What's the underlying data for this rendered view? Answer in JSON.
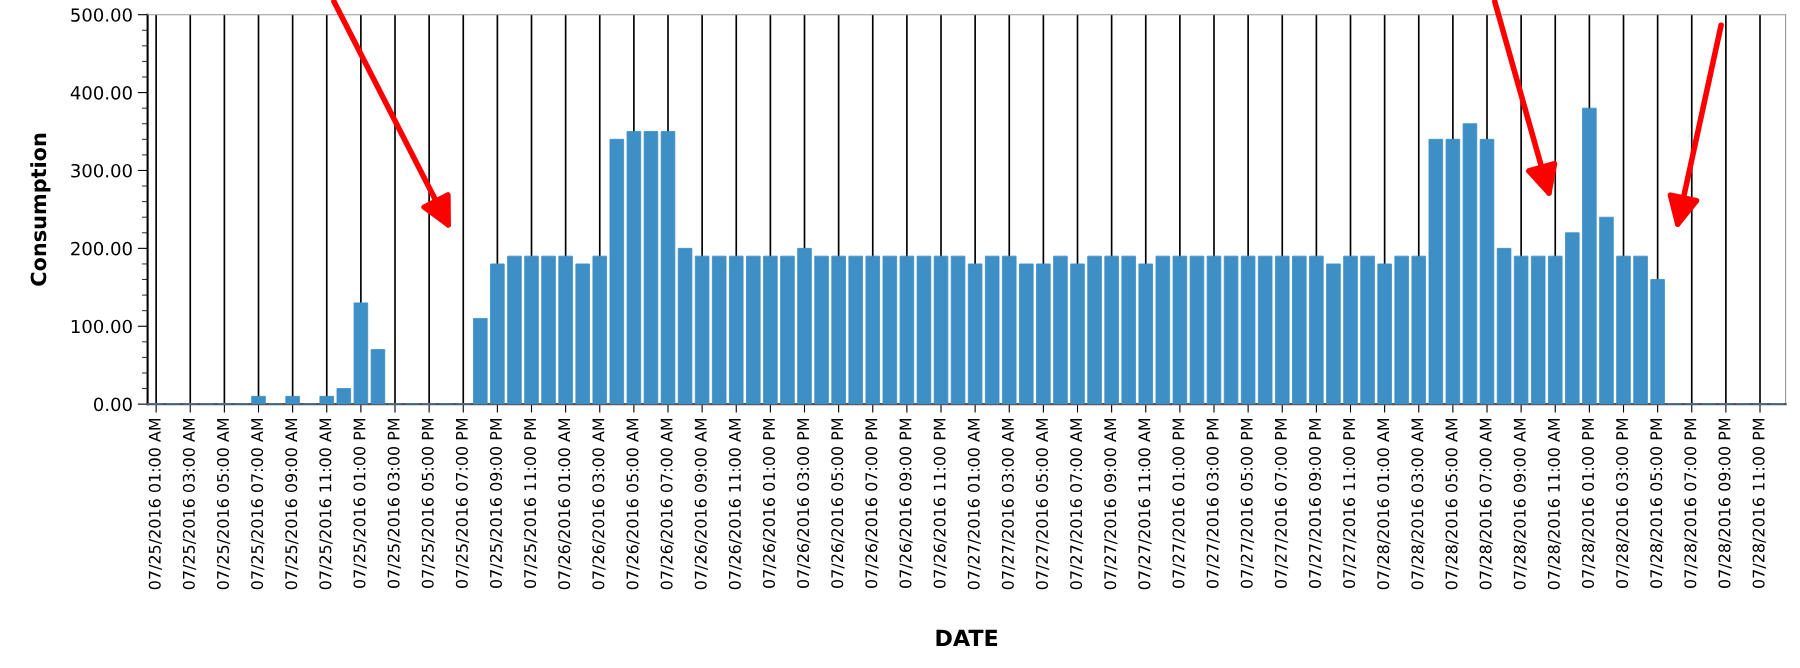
{
  "chart_data": {
    "type": "bar",
    "xlabel": "DATE",
    "ylabel": "Consumption",
    "categories": [
      "07/25/2016 01:00 AM",
      null,
      "07/25/2016 03:00 AM",
      null,
      "07/25/2016 05:00 AM",
      null,
      "07/25/2016 07:00 AM",
      null,
      "07/25/2016 09:00 AM",
      null,
      "07/25/2016 11:00 AM",
      null,
      "07/25/2016 01:00 PM",
      null,
      "07/25/2016 03:00 PM",
      null,
      "07/25/2016 05:00 PM",
      null,
      "07/25/2016 07:00 PM",
      null,
      "07/25/2016 09:00 PM",
      null,
      "07/25/2016 11:00 PM",
      null,
      "07/26/2016 01:00 AM",
      null,
      "07/26/2016 03:00 AM",
      null,
      "07/26/2016 05:00 AM",
      null,
      "07/26/2016 07:00 AM",
      null,
      "07/26/2016 09:00 AM",
      null,
      "07/26/2016 11:00 AM",
      null,
      "07/26/2016 01:00 PM",
      null,
      "07/26/2016 03:00 PM",
      null,
      "07/26/2016 05:00 PM",
      null,
      "07/26/2016 07:00 PM",
      null,
      "07/26/2016 09:00 PM",
      null,
      "07/26/2016 11:00 PM",
      null,
      "07/27/2016 01:00 AM",
      null,
      "07/27/2016 03:00 AM",
      null,
      "07/27/2016 05:00 AM",
      null,
      "07/27/2016 07:00 AM",
      null,
      "07/27/2016 09:00 AM",
      null,
      "07/27/2016 11:00 AM",
      null,
      "07/27/2016 01:00 PM",
      null,
      "07/27/2016 03:00 PM",
      null,
      "07/27/2016 05:00 PM",
      null,
      "07/27/2016 07:00 PM",
      null,
      "07/27/2016 09:00 PM",
      null,
      "07/27/2016 11:00 PM",
      null,
      "07/28/2016 01:00 AM",
      null,
      "07/28/2016 03:00 AM",
      null,
      "07/28/2016 05:00 AM",
      null,
      "07/28/2016 07:00 AM",
      null,
      "07/28/2016 09:00 AM",
      null,
      "07/28/2016 11:00 AM",
      null,
      "07/28/2016 01:00 PM",
      null,
      "07/28/2016 03:00 PM",
      null,
      "07/28/2016 05:00 PM",
      null,
      "07/28/2016 07:00 PM",
      null,
      "07/28/2016 09:00 PM",
      null,
      "07/28/2016 11:00 PM",
      null
    ],
    "values": [
      0,
      0,
      0,
      0,
      0,
      0,
      10,
      0,
      10,
      0,
      10,
      20,
      130,
      70,
      0,
      0,
      0,
      0,
      0,
      110,
      180,
      190,
      190,
      190,
      190,
      180,
      190,
      340,
      350,
      350,
      350,
      200,
      190,
      190,
      190,
      190,
      190,
      190,
      200,
      190,
      190,
      190,
      190,
      190,
      190,
      190,
      190,
      190,
      180,
      190,
      190,
      180,
      180,
      190,
      180,
      190,
      190,
      190,
      180,
      190,
      190,
      190,
      190,
      190,
      190,
      190,
      190,
      190,
      190,
      180,
      190,
      190,
      180,
      190,
      190,
      340,
      340,
      360,
      340,
      200,
      190,
      190,
      190,
      220,
      380,
      240,
      190,
      190,
      160,
      0,
      0,
      0,
      0,
      0,
      0,
      0
    ],
    "color": "#3d8fc6",
    "ylim": [
      0,
      500
    ],
    "yticks": [
      {
        "value": 0,
        "label": "0.00"
      },
      {
        "value": 100,
        "label": "100.00"
      },
      {
        "value": 200,
        "label": "200.00"
      },
      {
        "value": 300,
        "label": "300.00"
      },
      {
        "value": 400,
        "label": "400.00"
      },
      {
        "value": 500,
        "label": "500.00"
      }
    ],
    "grid": "x"
  }
}
